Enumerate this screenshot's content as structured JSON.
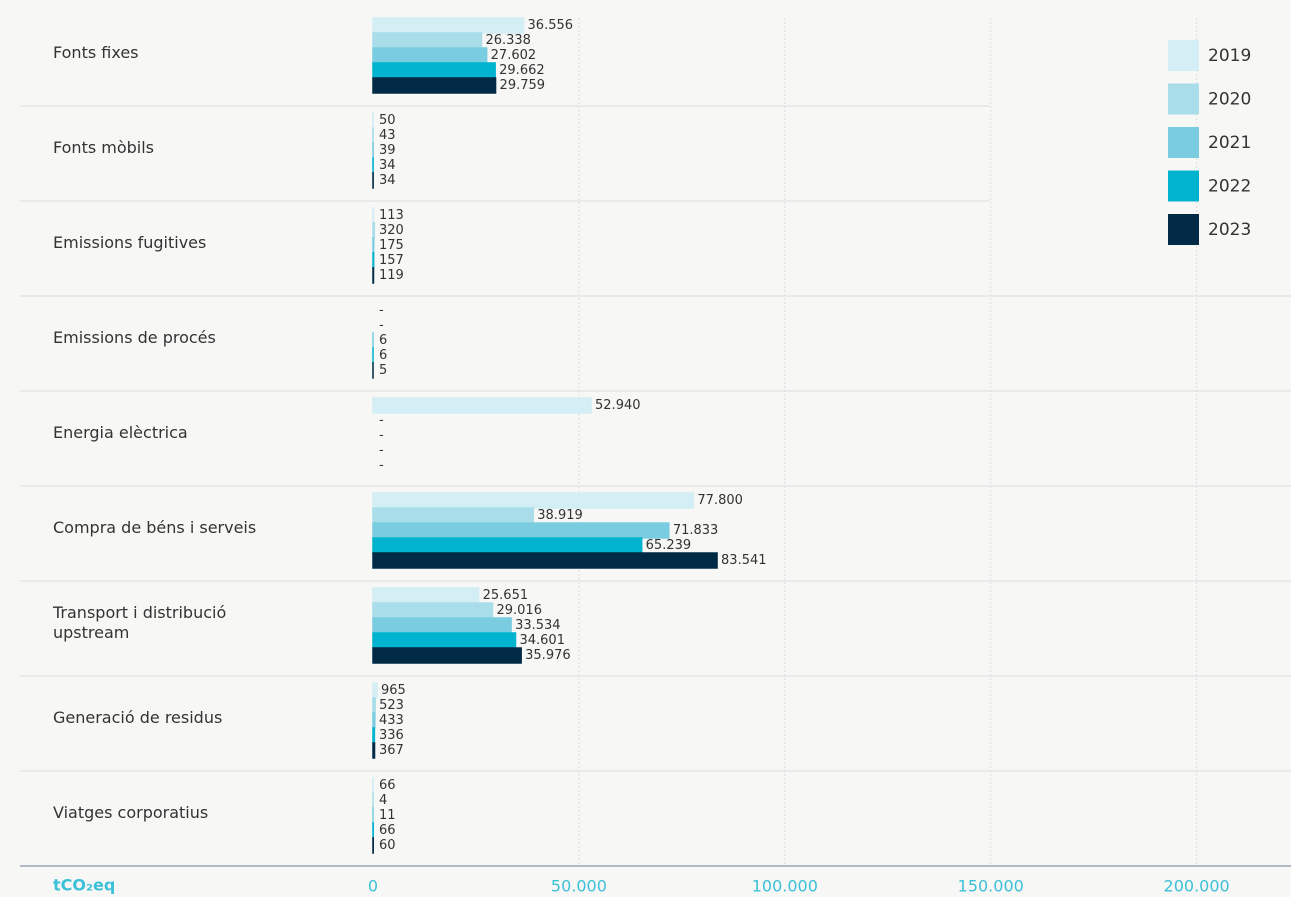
{
  "chart_data": {
    "type": "hbar",
    "categories": [
      "Fonts fixes",
      "Fonts mòbils",
      "Emissions fugitives",
      "Emissions de procés",
      "Energia elèctrica",
      "Compra de béns i serveis",
      "Transport i distribució upstream",
      "Generació de residus",
      "Viatges corporatius"
    ],
    "series": [
      {
        "name": "2019",
        "color": "#d3eef4",
        "values": [
          36556,
          50,
          113,
          null,
          52940,
          77800,
          25651,
          965,
          66
        ],
        "value_labels": [
          "36.556",
          "50",
          "113",
          "-",
          "52.940",
          "77.800",
          "25.651",
          "965",
          "66"
        ]
      },
      {
        "name": "2020",
        "color": "#a8dde9",
        "values": [
          26338,
          43,
          320,
          null,
          null,
          38919,
          29016,
          523,
          4
        ],
        "value_labels": [
          "26.338",
          "43",
          "320",
          "-",
          "-",
          "38.919",
          "29.016",
          "523",
          "4"
        ]
      },
      {
        "name": "2021",
        "color": "#7acde0",
        "values": [
          27602,
          39,
          175,
          6,
          null,
          71833,
          33534,
          433,
          11
        ],
        "value_labels": [
          "27.602",
          "39",
          "175",
          "6",
          "-",
          "71.833",
          "33.534",
          "433",
          "11"
        ]
      },
      {
        "name": "2022",
        "color": "#00b4cf",
        "values": [
          29662,
          34,
          157,
          6,
          null,
          65239,
          34601,
          336,
          66
        ],
        "value_labels": [
          "29.662",
          "34",
          "157",
          "6",
          "-",
          "65.239",
          "34.601",
          "336",
          "66"
        ]
      },
      {
        "name": "2023",
        "color": "#002a45",
        "values": [
          29759,
          34,
          119,
          5,
          null,
          83541,
          35976,
          367,
          60
        ],
        "value_labels": [
          "29.759",
          "34",
          "119",
          "5",
          "-",
          "83.541",
          "35.976",
          "367",
          "60"
        ]
      }
    ],
    "xlabel": "tCO₂eq",
    "xlim": [
      0,
      220000
    ],
    "xticks": [
      0,
      {
        "value": 50000,
        "label": "50.000"
      },
      {
        "value": 100000,
        "label": "100.000"
      },
      {
        "value": 150000,
        "label": "150.000"
      },
      {
        "value": 200000,
        "label": "200.000"
      }
    ],
    "grid": true,
    "legend": "top-right"
  }
}
